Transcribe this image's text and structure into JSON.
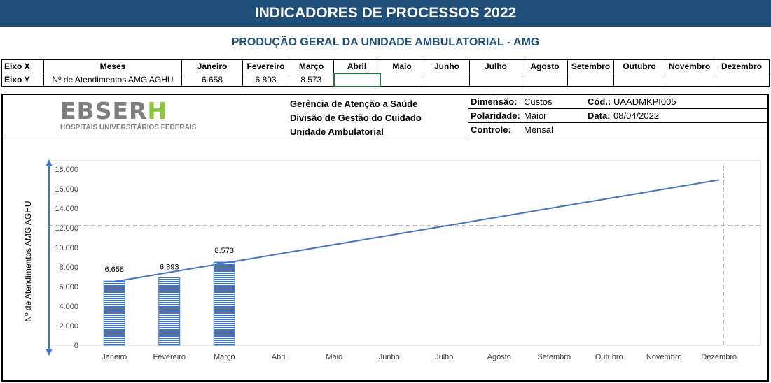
{
  "header": {
    "title": "INDICADORES DE PROCESSOS 2022",
    "subtitle": "PRODUÇÃO GERAL DA UNIDADE AMBULATORIAL - AMG"
  },
  "axes_table": {
    "x_label": "Eixo X",
    "y_label": "Eixo Y",
    "x_header": "Meses",
    "y_header": "Nº de Atendimentos AMG AGHU",
    "months": [
      "Janeiro",
      "Fevereiro",
      "Março",
      "Abril",
      "Maio",
      "Junho",
      "Julho",
      "Agosto",
      "Setembro",
      "Outubro",
      "Novembro",
      "Dezembro"
    ],
    "values": [
      "6.658",
      "6.893",
      "8.573",
      "",
      "",
      "",
      "",
      "",
      "",
      "",
      "",
      ""
    ]
  },
  "info": {
    "logo_text": "EBSERH",
    "logo_sub": "HOSPITAIS UNIVERSITÁRIOS FEDERAIS",
    "org_lines": [
      "Gerência de Atenção a Saúde",
      "Divisão de Gestão do Cuidado",
      "Unidade Ambulatorial"
    ],
    "dimensao_label": "Dimensão:",
    "dimensao_value": "Custos",
    "cod_label": "Cód.:",
    "cod_value": "UAADMKPI005",
    "polaridade_label": "Polaridade:",
    "polaridade_value": "Maior",
    "data_label": "Data:",
    "data_value": "08/04/2022",
    "controle_label": "Controle:",
    "controle_value": "Mensal"
  },
  "chart_data": {
    "type": "bar",
    "title": "",
    "xlabel": "",
    "ylabel": "Nº de Atendimentos AMG AGHU",
    "categories": [
      "Janeiro",
      "Fevereiro",
      "Março",
      "Abril",
      "Maio",
      "Junho",
      "Julho",
      "Agosto",
      "Setembro",
      "Outubro",
      "Novembro",
      "Dezembro"
    ],
    "series": [
      {
        "values": [
          6658,
          6893,
          8573,
          null,
          null,
          null,
          null,
          null,
          null,
          null,
          null,
          null
        ],
        "color": "#4472c4"
      }
    ],
    "data_labels": [
      "6.658",
      "6.893",
      "8.573"
    ],
    "trendline": {
      "type": "linear",
      "start": 6500,
      "end": 16900,
      "color": "#4472c4"
    },
    "reference_line": {
      "value": 12200,
      "style": "dashed"
    },
    "ylim": [
      0,
      18000
    ],
    "yticks": [
      0,
      2000,
      4000,
      6000,
      8000,
      10000,
      12000,
      14000,
      16000,
      18000
    ],
    "ytick_labels": [
      "0",
      "2.000",
      "4.000",
      "6.000",
      "8.000",
      "10.000",
      "12.000",
      "14.000",
      "16.000",
      "18.000"
    ],
    "grid": false,
    "legend": "none"
  }
}
